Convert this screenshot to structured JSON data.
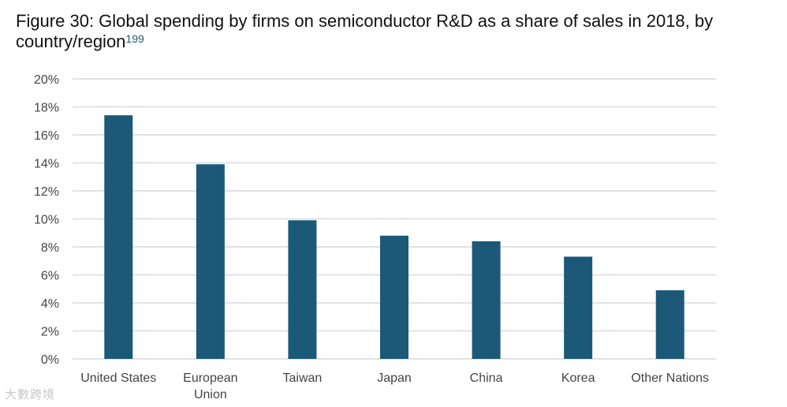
{
  "title": "Figure 30: Global spending by firms on semiconductor R&D as a share of sales in 2018, by country/region",
  "footnote": "199",
  "watermark": "大數跨境",
  "colors": {
    "bar": "#1c5878",
    "grid": "#d9d9d9",
    "axis_text": "#444444"
  },
  "chart_data": {
    "type": "bar",
    "title": "Figure 30: Global spending by firms on semiconductor R&D as a share of sales in 2018, by country/region",
    "xlabel": "",
    "ylabel": "",
    "categories": [
      "United States",
      "European Union",
      "Taiwan",
      "Japan",
      "China",
      "Korea",
      "Other Nations"
    ],
    "category_lines": [
      [
        "United States"
      ],
      [
        "European",
        "Union"
      ],
      [
        "Taiwan"
      ],
      [
        "Japan"
      ],
      [
        "China"
      ],
      [
        "Korea"
      ],
      [
        "Other Nations"
      ]
    ],
    "values": [
      17.4,
      13.9,
      9.9,
      8.8,
      8.4,
      7.3,
      4.9
    ],
    "unit": "%",
    "ylim": [
      0,
      20
    ],
    "yticks": [
      0,
      2,
      4,
      6,
      8,
      10,
      12,
      14,
      16,
      18,
      20
    ],
    "ytick_labels": [
      "0%",
      "2%",
      "4%",
      "6%",
      "8%",
      "10%",
      "12%",
      "14%",
      "16%",
      "18%",
      "20%"
    ],
    "grid": true,
    "legend": "none"
  }
}
